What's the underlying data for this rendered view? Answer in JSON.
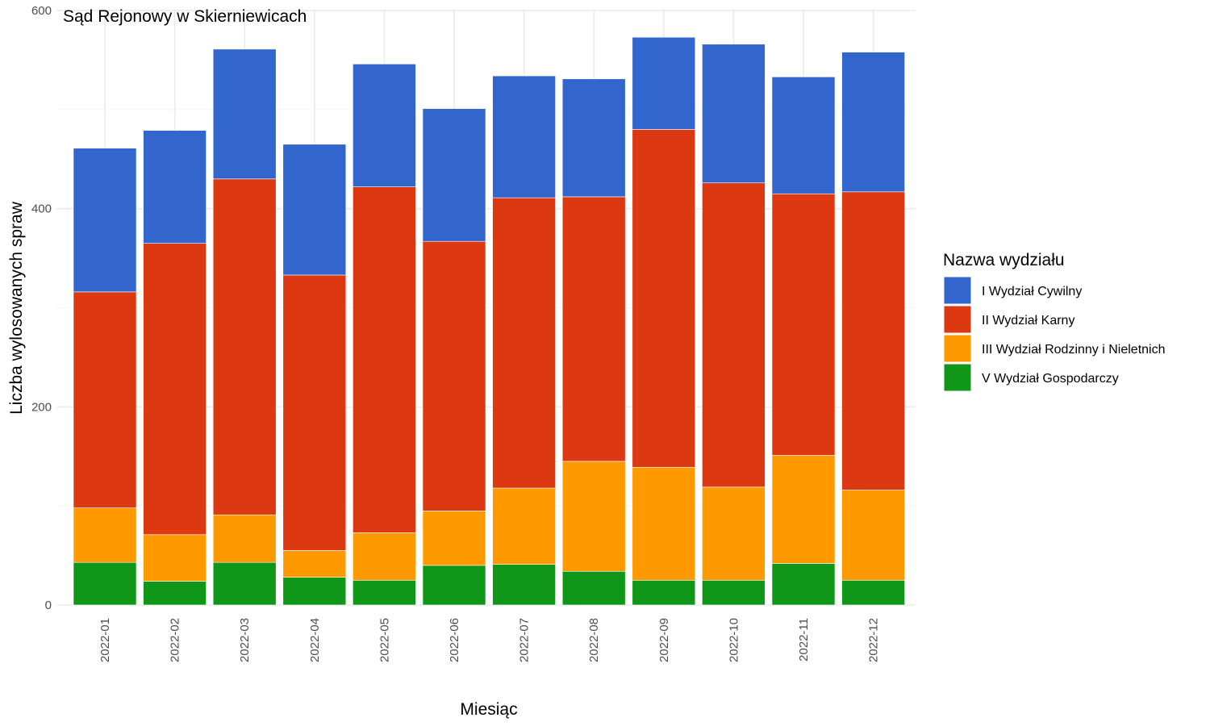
{
  "chart_data": {
    "type": "bar",
    "stacked": true,
    "title": "Sąd Rejonowy w Skierniewicach",
    "xlabel": "Miesiąc",
    "ylabel": "Liczba wylosowanych spraw",
    "ylim": [
      0,
      600
    ],
    "yticks": [
      0,
      200,
      400,
      600
    ],
    "grid": true,
    "legend_title": "Nazwa wydziału",
    "legend_position": "right",
    "categories": [
      "2022-01",
      "2022-02",
      "2022-03",
      "2022-04",
      "2022-05",
      "2022-06",
      "2022-07",
      "2022-08",
      "2022-09",
      "2022-10",
      "2022-11",
      "2022-12"
    ],
    "series": [
      {
        "name": "V Wydział Gospodarczy",
        "color": "#109618",
        "values": [
          43,
          24,
          43,
          28,
          25,
          40,
          41,
          34,
          25,
          25,
          42,
          25
        ]
      },
      {
        "name": "III Wydział Rodzinny i Nieletnich",
        "color": "#FF9900",
        "values": [
          55,
          47,
          48,
          27,
          48,
          55,
          77,
          111,
          114,
          94,
          109,
          91
        ]
      },
      {
        "name": "II Wydział Karny",
        "color": "#DC3912",
        "values": [
          218,
          294,
          339,
          278,
          349,
          272,
          293,
          267,
          341,
          307,
          264,
          301
        ]
      },
      {
        "name": "I Wydział Cywilny",
        "color": "#3366CC",
        "values": [
          145,
          114,
          131,
          132,
          124,
          134,
          123,
          119,
          93,
          140,
          118,
          141
        ]
      }
    ],
    "legend_order": [
      "I Wydział Cywilny",
      "II Wydział Karny",
      "III Wydział Rodzinny i Nieletnich",
      "V Wydział Gospodarczy"
    ]
  }
}
